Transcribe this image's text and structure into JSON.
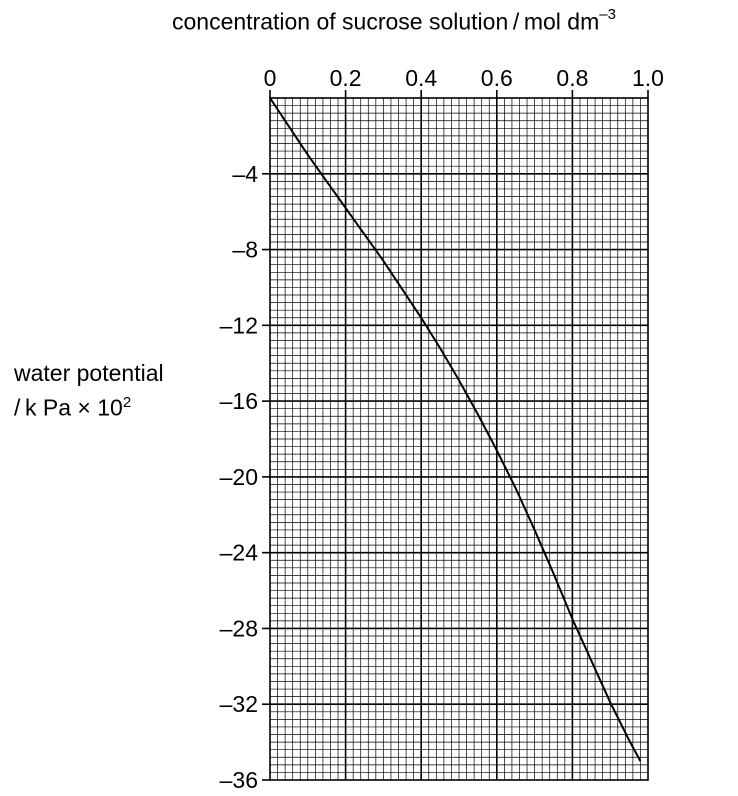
{
  "chart_data": {
    "type": "line",
    "xlabel": {
      "text": "concentration of sucrose solution / mol dm",
      "superscript": "–3"
    },
    "ylabel": {
      "line1": "water potential",
      "line2": "/ k Pa × 10",
      "superscript": "2"
    },
    "xlim": [
      0,
      1.0
    ],
    "ylim": [
      -36,
      0
    ],
    "x_tick_labels": [
      "0",
      "0.2",
      "0.4",
      "0.6",
      "0.8",
      "1.0"
    ],
    "y_tick_labels": [
      "–4",
      "–8",
      "–12",
      "–16",
      "–20",
      "–24",
      "–28",
      "–32",
      "–36"
    ],
    "grid": true,
    "series": [
      {
        "x": [
          0,
          0.05,
          0.1,
          0.15,
          0.2,
          0.25,
          0.3,
          0.35,
          0.4,
          0.45,
          0.5,
          0.55,
          0.6,
          0.65,
          0.7,
          0.75,
          0.8,
          0.85,
          0.9,
          0.95,
          0.98
        ],
        "y": [
          0,
          -1.5,
          -3.0,
          -4.4,
          -5.8,
          -7.2,
          -8.6,
          -10.1,
          -11.6,
          -13.2,
          -14.9,
          -16.7,
          -18.6,
          -20.6,
          -22.8,
          -25.1,
          -27.5,
          -29.7,
          -31.9,
          -33.9,
          -35.0
        ]
      }
    ]
  }
}
